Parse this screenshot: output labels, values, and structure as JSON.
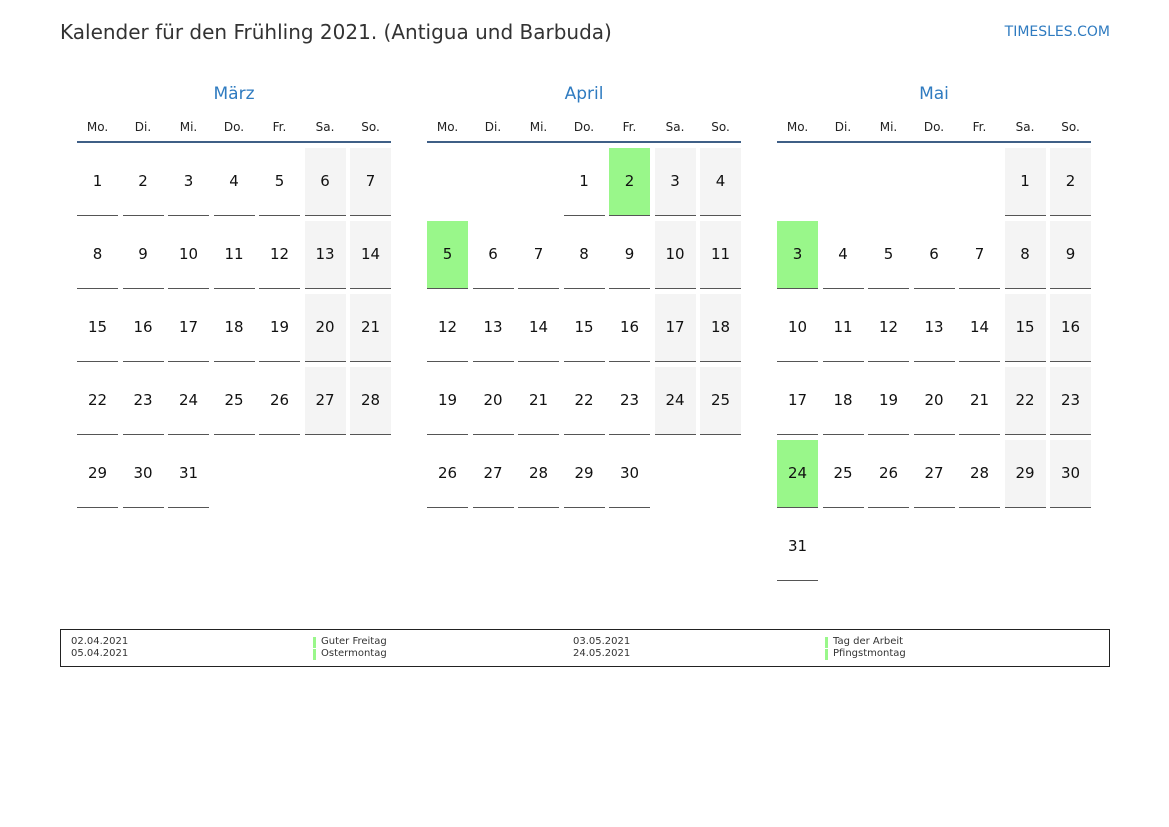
{
  "header": {
    "title": "Kalender für den Frühling 2021. (Antigua und Barbuda)",
    "brand": "TIMESLES.COM"
  },
  "weekdays": [
    "Mo.",
    "Di.",
    "Mi.",
    "Do.",
    "Fr.",
    "Sa.",
    "So."
  ],
  "colors": {
    "holiday": "#99f78a",
    "weekend": "#f4f4f4",
    "accent": "#2f7bc0"
  },
  "months": [
    {
      "name": "März",
      "start_weekday": "Mo.",
      "days": 31,
      "holidays": []
    },
    {
      "name": "April",
      "start_weekday": "Do.",
      "days": 30,
      "holidays": [
        2,
        5
      ]
    },
    {
      "name": "Mai",
      "start_weekday": "Sa.",
      "days": 31,
      "holidays": [
        3,
        24
      ]
    }
  ],
  "legend": [
    {
      "date": "02.04.2021",
      "name": "Guter Freitag"
    },
    {
      "date": "05.04.2021",
      "name": "Ostermontag"
    },
    {
      "date": "03.05.2021",
      "name": "Tag der Arbeit"
    },
    {
      "date": "24.05.2021",
      "name": "Pfingstmontag"
    }
  ]
}
